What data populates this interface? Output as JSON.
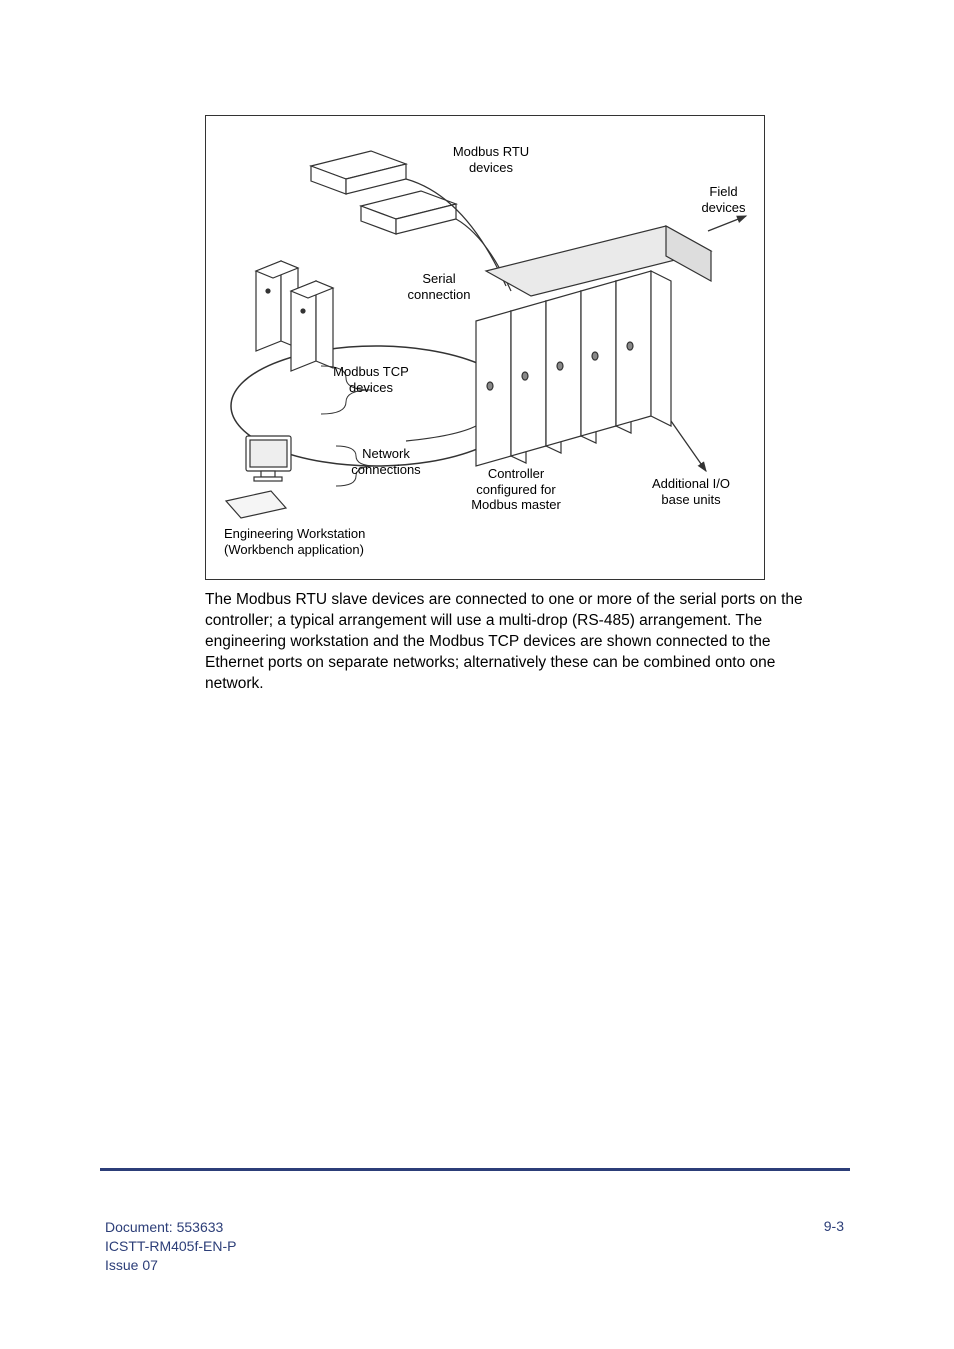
{
  "diagram": {
    "labels": {
      "modbus_rtu": "Modbus RTU\ndevices",
      "field_devices": "Field\ndevices",
      "serial_conn": "Serial\nconnection",
      "modbus_tcp": "Modbus TCP\ndevices",
      "network_conn": "Network\nconnections",
      "controller": "Controller\nconfigured for\nModbus master",
      "additional_io": "Additional I/O\nbase units",
      "workstation": "Engineering Workstation\n(Workbench application)"
    },
    "style": {
      "border_color": "#333333",
      "label_fontsize": 13,
      "label_color": "#000000",
      "stroke_color": "#333333",
      "fill_color": "#ffffff",
      "hatch_color": "#999999"
    }
  },
  "paragraph": "The Modbus RTU slave devices are connected to one or more of the serial ports on the controller; a typical arrangement will use a multi-drop (RS-485) arrangement. The engineering workstation and the Modbus TCP devices are shown connected to the Ethernet ports on separate networks; alternatively these can be combined onto one network.",
  "footer": {
    "doc_label": "Document: 553633",
    "doc_id": "ICSTT-RM405f-EN-P",
    "issue": " Issue 07",
    "page_no": "9-3",
    "color": "#2c3e78",
    "rule_color": "#2c3e78"
  }
}
